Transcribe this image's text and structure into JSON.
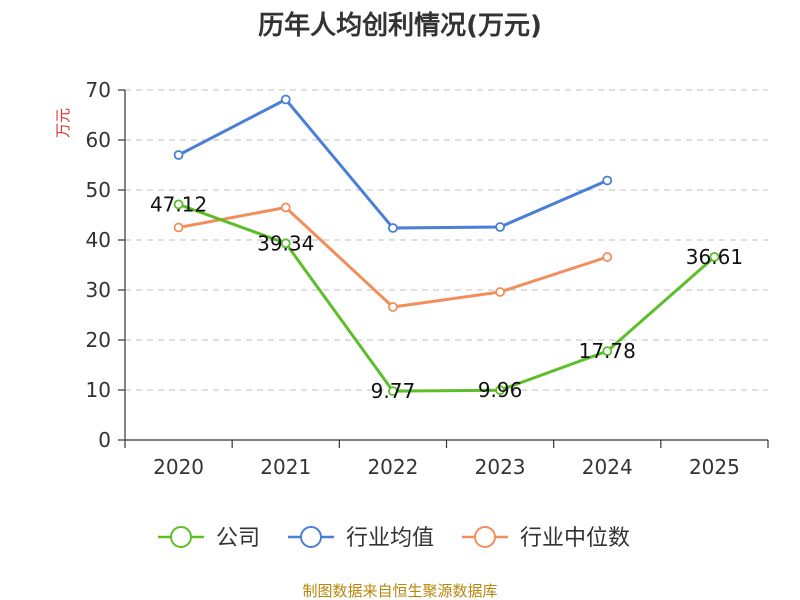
{
  "chart_data": {
    "type": "line",
    "title": "历年人均创利情况(万元)",
    "ylabel": "万元",
    "xlabel": "",
    "categories": [
      "2020",
      "2021",
      "2022",
      "2023",
      "2024",
      "2025"
    ],
    "ylim": [
      0,
      70
    ],
    "yticks": [
      0,
      10,
      20,
      30,
      40,
      50,
      60,
      70
    ],
    "grid": true,
    "legend_position": "bottom",
    "series": [
      {
        "name": "公司",
        "color": "#5cbf29",
        "values": [
          47.12,
          39.34,
          9.77,
          9.96,
          17.78,
          36.61
        ],
        "labels": [
          "47.12",
          "39.34",
          "9.77",
          "9.96",
          "17.78",
          "36.61"
        ]
      },
      {
        "name": "行业均值",
        "color": "#4a7fd8",
        "values": [
          57.0,
          68.1,
          42.4,
          42.6,
          51.9,
          null
        ]
      },
      {
        "name": "行业中位数",
        "color": "#f28e5c",
        "values": [
          42.5,
          46.5,
          26.6,
          29.6,
          36.6,
          null
        ]
      }
    ]
  },
  "footer": {
    "source": "制图数据来自恒生聚源数据库"
  }
}
